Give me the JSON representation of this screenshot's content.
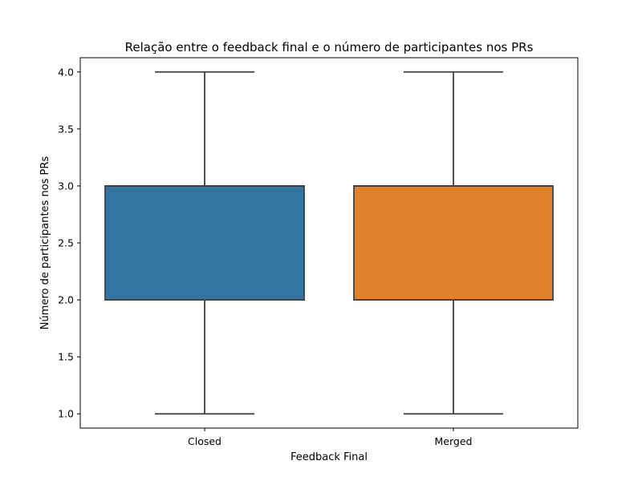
{
  "chart_data": {
    "type": "box",
    "title": "Relação entre o feedback final e o número de participantes nos PRs",
    "xlabel": "Feedback Final",
    "ylabel": "Número de participantes nos PRs",
    "ylim": [
      0.875,
      4.125
    ],
    "yticks": [
      1.0,
      1.5,
      2.0,
      2.5,
      3.0,
      3.5,
      4.0
    ],
    "ytick_labels": [
      "1.0",
      "1.5",
      "2.0",
      "2.5",
      "3.0",
      "3.5",
      "4.0"
    ],
    "categories": [
      "Closed",
      "Merged"
    ],
    "boxes": [
      {
        "category": "Closed",
        "whisker_low": 1.0,
        "q1": 2.0,
        "median": 3.0,
        "q3": 3.0,
        "whisker_high": 4.0,
        "color": "#3274a1"
      },
      {
        "category": "Merged",
        "whisker_low": 1.0,
        "q1": 2.0,
        "median": 3.0,
        "q3": 3.0,
        "whisker_high": 4.0,
        "color": "#e1812c"
      }
    ],
    "grid": false,
    "legend": "none"
  }
}
